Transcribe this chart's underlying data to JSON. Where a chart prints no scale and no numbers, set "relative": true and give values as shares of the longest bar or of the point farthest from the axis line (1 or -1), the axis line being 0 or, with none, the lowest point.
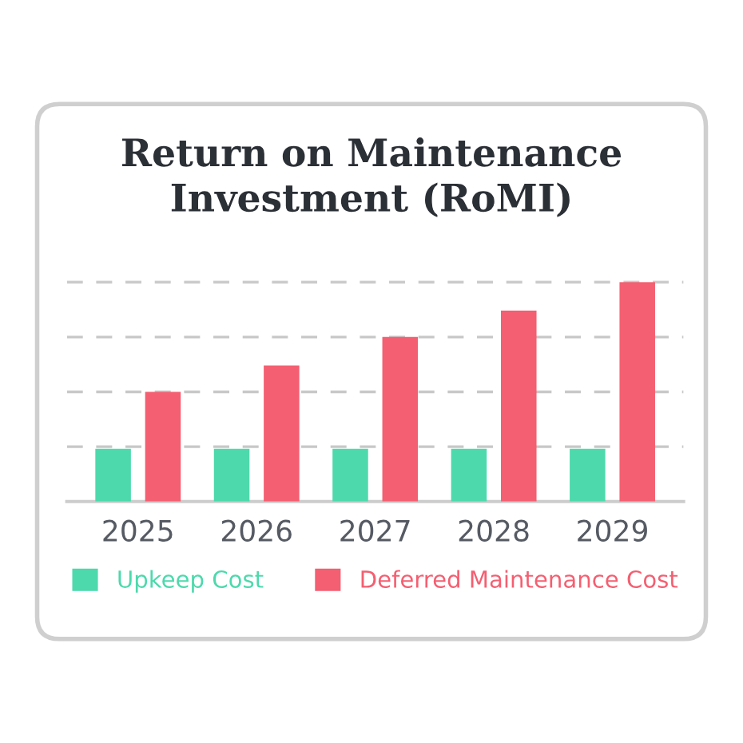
{
  "chart_data": {
    "type": "bar",
    "title": "Return on Maintenance\nInvestment (RoMI)",
    "categories": [
      "2025",
      "2026",
      "2027",
      "2028",
      "2029"
    ],
    "series": [
      {
        "name": "Upkeep Cost",
        "color": "#4dd9ac",
        "values": [
          0.24,
          0.24,
          0.24,
          0.24,
          0.24
        ]
      },
      {
        "name": "Deferred Maintenance Cost",
        "color": "#f45f71",
        "values": [
          0.5,
          0.62,
          0.75,
          0.87,
          1.0
        ]
      }
    ],
    "relative": true,
    "grid": "y",
    "legend": "bottom"
  }
}
